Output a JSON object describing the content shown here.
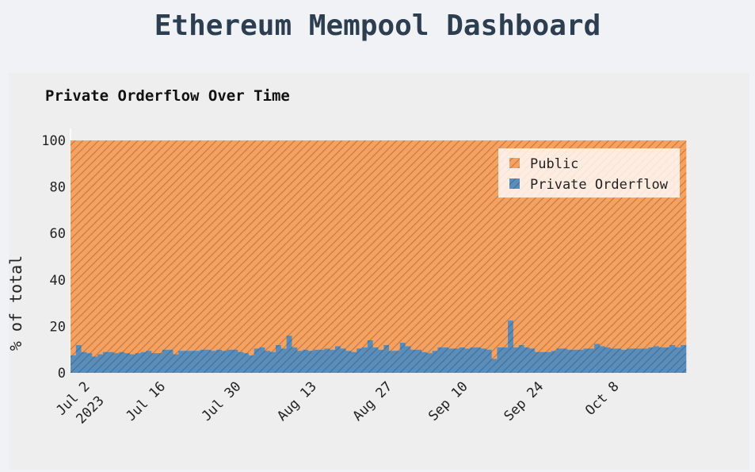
{
  "page": {
    "title": "Ethereum Mempool Dashboard"
  },
  "chart_data": {
    "type": "bar",
    "stacked": true,
    "title": "Private Orderflow Over Time",
    "xlabel": "",
    "ylabel": "% of total",
    "ylim": [
      0,
      100
    ],
    "y_ticks": [
      "0",
      "20",
      "40",
      "60",
      "80",
      "100"
    ],
    "x_start": "2023-06-30",
    "x_ticks": [
      {
        "date": "2023-07-02",
        "label": "Jul 2",
        "sub": "2023"
      },
      {
        "date": "2023-07-16",
        "label": "Jul 16"
      },
      {
        "date": "2023-07-30",
        "label": "Jul 30"
      },
      {
        "date": "2023-08-13",
        "label": "Aug 13"
      },
      {
        "date": "2023-08-27",
        "label": "Aug 27"
      },
      {
        "date": "2023-09-10",
        "label": "Sep 10"
      },
      {
        "date": "2023-09-24",
        "label": "Sep 24"
      },
      {
        "date": "2023-10-08",
        "label": "Oct 8"
      }
    ],
    "legend_position": "top-right",
    "colors": {
      "public": "#f4a261",
      "private": "#5b8db8",
      "hatch": "#c8743a",
      "hatch_private": "#3f6f99"
    },
    "series": [
      {
        "name": "Private Orderflow",
        "values": [
          7.5,
          12,
          9,
          8.5,
          7,
          8,
          9,
          9,
          8.5,
          9,
          8.5,
          8,
          8.5,
          9,
          9.5,
          8.5,
          8.5,
          10,
          10,
          8,
          9.5,
          9.5,
          9.5,
          9.5,
          10,
          10,
          9.5,
          10,
          9.5,
          10,
          10,
          9,
          8.5,
          7.5,
          10.5,
          11,
          9.5,
          9,
          12,
          10.5,
          16,
          11,
          9.5,
          10,
          9.5,
          10,
          10,
          10.5,
          10,
          11.5,
          10.5,
          9.5,
          9,
          10.5,
          11,
          14,
          11,
          10,
          12,
          9.5,
          9.5,
          13,
          11.5,
          10,
          10,
          9,
          8.5,
          9.5,
          11,
          11,
          10.5,
          10.5,
          11,
          10.5,
          11,
          11,
          10.5,
          10,
          6,
          11,
          11,
          22.5,
          11,
          12,
          11,
          10.5,
          9,
          9,
          9,
          9.5,
          10.5,
          10.5,
          10,
          10,
          10,
          10.5,
          10.5,
          12.5,
          11.5,
          11,
          10.5,
          10.5,
          10,
          10.5,
          10.5,
          10.5,
          10.5,
          11,
          11.5,
          11,
          11,
          12,
          11,
          12
        ]
      },
      {
        "name": "Public",
        "values": "100 minus Private Orderflow"
      }
    ]
  }
}
